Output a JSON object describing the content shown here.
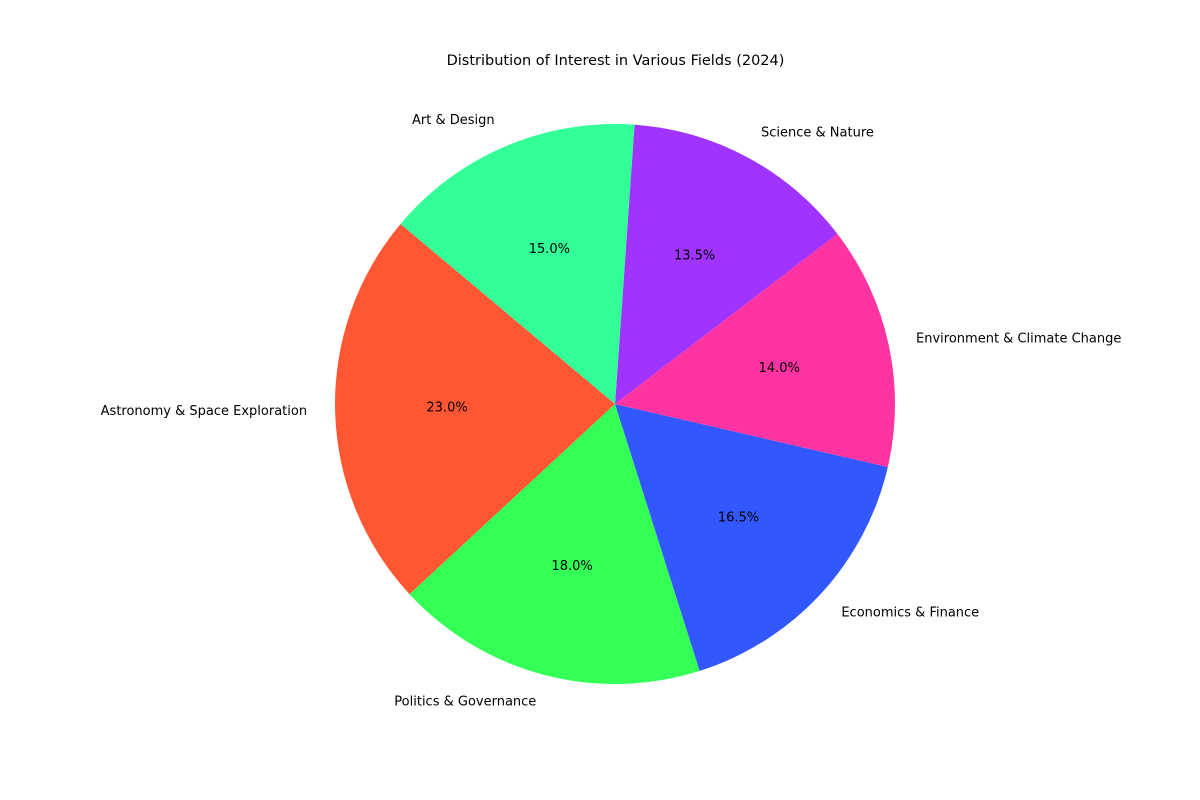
{
  "chart_data": {
    "type": "pie",
    "title": "Distribution of Interest in Various Fields (2024)",
    "categories": [
      "Astronomy & Space Exploration",
      "Politics & Governance",
      "Economics & Finance",
      "Environment & Climate Change",
      "Science & Nature",
      "Art & Design"
    ],
    "values": [
      23.0,
      18.0,
      16.5,
      14.0,
      13.5,
      15.0
    ],
    "value_labels": [
      "23.0%",
      "18.0%",
      "16.5%",
      "14.0%",
      "13.5%",
      "15.0%"
    ],
    "colors": [
      "#ff5733",
      "#33ff57",
      "#3357ff",
      "#ff33a1",
      "#a133ff",
      "#33ff99"
    ],
    "start_angle_deg": 140,
    "direction": "counterclockwise",
    "legend": "none",
    "grid": false
  }
}
